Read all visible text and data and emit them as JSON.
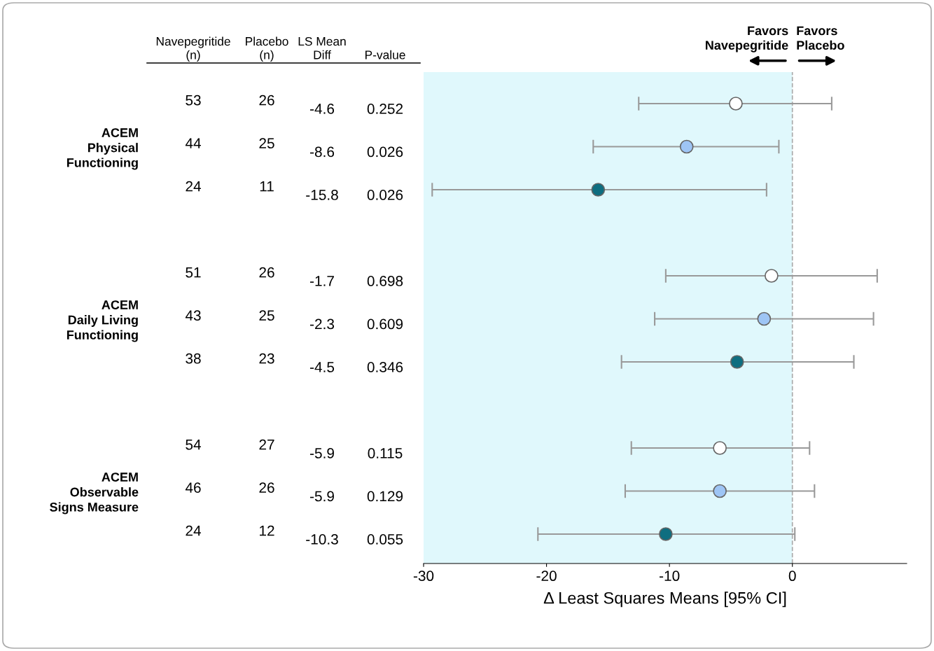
{
  "chart_data": [
    {
      "type": "other",
      "categories": [
        "Navepegritide\n(n)",
        "Placebo\n(n)",
        "LS Mean\nDiff",
        "P-value"
      ],
      "y_categories": [
        null,
        "ACEM\nPhysical\nFunctioning",
        null,
        null,
        null,
        "ACEM\nDaily Living\nFunctioning",
        null,
        null,
        null,
        "ACEM\nObservable\nSigns Measure",
        null
      ],
      "cell_labels": [
        [
          "53",
          "26",
          "-4.6",
          "0.252"
        ],
        [
          "44",
          "25",
          "-8.6",
          "0.026"
        ],
        [
          "24",
          "11",
          "-15.8",
          "0.026"
        ],
        null,
        [
          "51",
          "26",
          "-1.7",
          "0.698"
        ],
        [
          "43",
          "25",
          "-2.3",
          "0.609"
        ],
        [
          "38",
          "23",
          "-4.5",
          "0.346"
        ],
        null,
        [
          "54",
          "27",
          "-5.9",
          "0.115"
        ],
        [
          "46",
          "26",
          "-5.9",
          "0.129"
        ],
        [
          "24",
          "12",
          "-10.3",
          "0.055"
        ]
      ]
    },
    {
      "type": "scatter",
      "orientation": "horizontal",
      "categories": [
        null,
        null,
        null,
        null,
        null,
        null,
        null,
        null,
        null,
        null,
        null
      ],
      "xlabel": "Δ Least Squares Means [95% CI]",
      "xlim": [
        -30,
        9.3
      ],
      "xticks": [
        -30,
        -20,
        -10,
        0
      ],
      "grid": false,
      "marker": "circle",
      "series": [
        {
          "color": "#ffffff",
          "values": [
            -4.6,
            null,
            null,
            null,
            -1.7,
            null,
            null,
            null,
            -5.9,
            null,
            null
          ],
          "errors": [
            [
              -12.5,
              3.2
            ],
            null,
            null,
            null,
            [
              -10.3,
              6.9
            ],
            null,
            null,
            null,
            [
              -13.1,
              1.4
            ],
            null,
            null
          ]
        },
        {
          "color": "#9ec5f5",
          "values": [
            null,
            -8.6,
            null,
            null,
            null,
            -2.3,
            null,
            null,
            null,
            -5.9,
            null
          ],
          "errors": [
            null,
            [
              -16.2,
              -1.1
            ],
            null,
            null,
            null,
            [
              -11.2,
              6.6
            ],
            null,
            null,
            null,
            [
              -13.6,
              1.8
            ],
            null
          ]
        },
        {
          "color": "#0e6e80",
          "values": [
            null,
            null,
            -15.8,
            null,
            null,
            null,
            -4.5,
            null,
            null,
            null,
            -10.3
          ],
          "errors": [
            null,
            null,
            [
              -29.3,
              -2.1
            ],
            null,
            null,
            null,
            [
              -13.9,
              5.0
            ],
            null,
            null,
            null,
            [
              -20.7,
              0.2
            ]
          ]
        }
      ],
      "bands": [
        {
          "axis": "x",
          "from": -30,
          "to": 0,
          "color": "#e0f8fc"
        }
      ],
      "ref_lines": [
        {
          "axis": "x",
          "value": 0,
          "line_style": "dashed",
          "color": "#aaaaaa"
        }
      ],
      "annotations": [
        "Favors\nNavepegritide",
        "Favors\nPlacebo"
      ]
    }
  ]
}
